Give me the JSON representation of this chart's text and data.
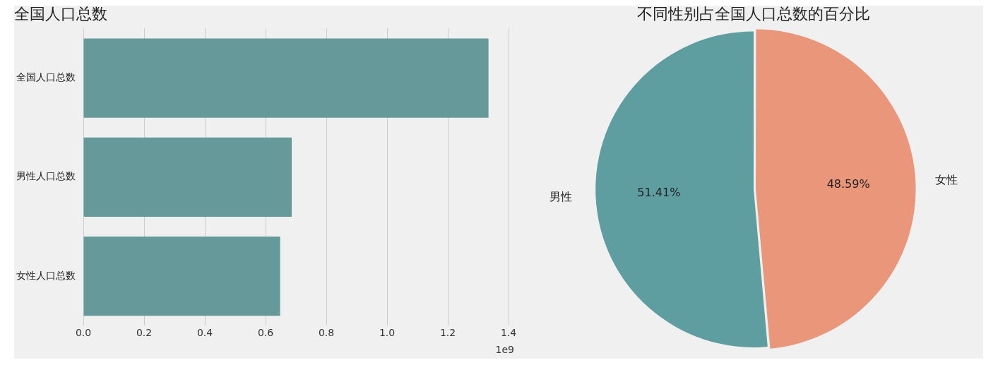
{
  "chart_data": [
    {
      "type": "bar",
      "orientation": "horizontal",
      "title": "全国人口总数",
      "categories": [
        "全国人口总数",
        "男性人口总数",
        "女性人口总数"
      ],
      "values": [
        1.334,
        0.686,
        0.648
      ],
      "color": "#669999",
      "xlim": [
        0,
        1.4
      ],
      "xticks": [
        {
          "value": 0,
          "label": "0.0"
        },
        0.2,
        0.4,
        0.6,
        0.8,
        {
          "value": 1,
          "label": "1.0"
        },
        1.2,
        1.4
      ],
      "annotations": [
        "1e9"
      ],
      "grid": "x",
      "legend": false
    },
    {
      "type": "pie",
      "title": "不同性别占全国人口总数的百分比",
      "categories": [
        "男性",
        "女性"
      ],
      "values": [
        51.41,
        48.59
      ],
      "colors": [
        "#5f9ea0",
        "#e9967a"
      ],
      "value_labels": [
        "51.41%",
        "48.59%"
      ],
      "legend": false
    }
  ]
}
